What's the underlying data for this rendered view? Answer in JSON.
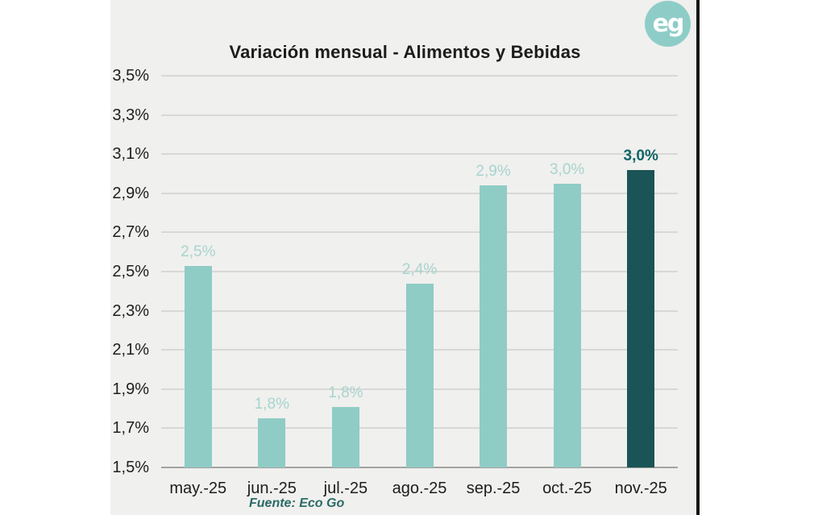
{
  "page": {
    "title": "Variación mensual - Alimentos y Bebidas",
    "source_note": "Fuente: Eco Go",
    "logo_text": "eg"
  },
  "colors": {
    "background": "#f0f0ee",
    "border": "#161616",
    "bar_light": "#8fccc6",
    "bar_dark": "#1b5456",
    "value_label_light": "#a7d4ce",
    "value_label_dark": "#0f6468",
    "gridline": "#d8d8d6",
    "baseline": "#a3a3a1",
    "axis_text": "#202020",
    "source_text": "#2b6b67",
    "logo_bg": "#8ecdc7"
  },
  "chart_data": {
    "type": "bar",
    "title": "Variación mensual - Alimentos y Bebidas",
    "categories": [
      "may.-25",
      "jun.-25",
      "jul.-25",
      "ago.-25",
      "sep.-25",
      "oct.-25",
      "nov.-25"
    ],
    "values": [
      2.53,
      1.75,
      1.81,
      2.44,
      2.94,
      2.95,
      3.02
    ],
    "value_labels": [
      "2,5%",
      "1,8%",
      "1,8%",
      "2,4%",
      "2,9%",
      "3,0%",
      "3,0%"
    ],
    "highlight_index": 6,
    "xlabel": "",
    "ylabel": "",
    "ylim": [
      1.5,
      3.5
    ],
    "ytick_step": 0.2,
    "ytick_labels": [
      "3,5%",
      "3,3%",
      "3,1%",
      "2,9%",
      "2,7%",
      "2,5%",
      "2,3%",
      "2,1%",
      "1,9%",
      "1,7%",
      "1,5%"
    ],
    "grid": true,
    "legend": false,
    "source": "Fuente: Eco Go"
  }
}
